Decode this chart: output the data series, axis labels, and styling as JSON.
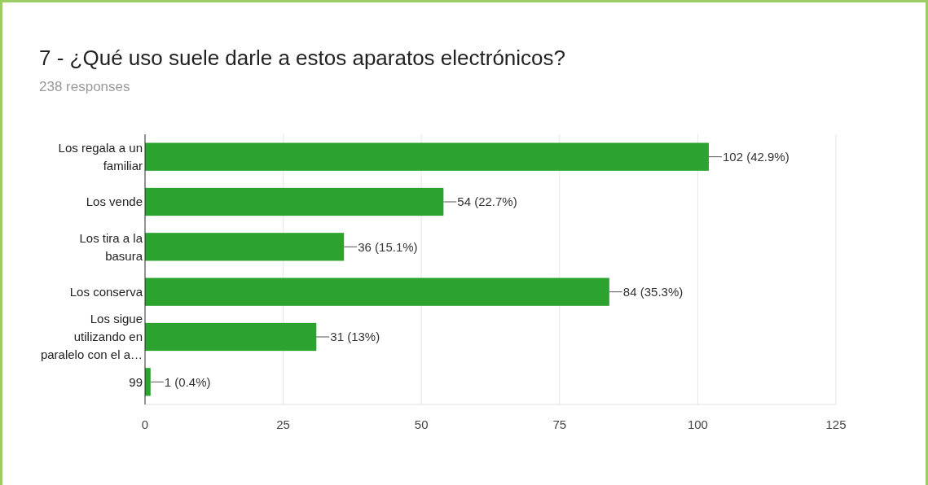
{
  "chart_data": {
    "type": "bar",
    "orientation": "horizontal",
    "title": "7 - ¿Qué uso suele darle a estos aparatos electrónicos?",
    "subtitle": "238 responses",
    "categories": [
      "Los regala a un familiar",
      "Los vende",
      "Los tira a la basura",
      "Los conserva",
      "Los sigue utilizando en paralelo con el a…",
      "99"
    ],
    "values": [
      102,
      54,
      36,
      84,
      31,
      1
    ],
    "value_labels": [
      "102 (42.9%)",
      "54 (22.7%)",
      "36 (15.1%)",
      "84 (35.3%)",
      "31 (13%)",
      "1 (0.4%)"
    ],
    "color": "#2ba32e",
    "xlim": [
      0,
      125
    ],
    "xticks": [
      0,
      25,
      50,
      75,
      100,
      125
    ],
    "grid": "x"
  }
}
